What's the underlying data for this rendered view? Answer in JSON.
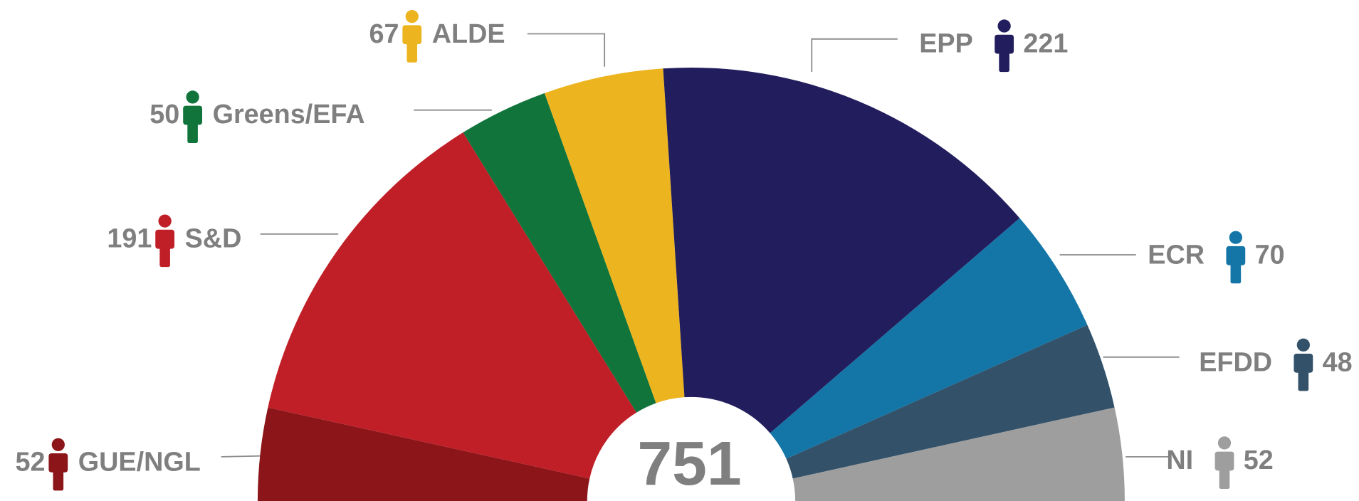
{
  "chart_data": {
    "type": "semicircle-donut",
    "categories": [
      "GUE/NGL",
      "S&D",
      "Greens/EFA",
      "ALDE",
      "EPP",
      "ECR",
      "EFDD",
      "NI"
    ],
    "values": [
      52,
      191,
      50,
      67,
      221,
      70,
      48,
      52
    ],
    "colors": [
      "#8b1519",
      "#c01f27",
      "#10743b",
      "#ecb41f",
      "#221e5e",
      "#1476a7",
      "#33526a",
      "#9e9e9e"
    ],
    "total": 751
  }
}
